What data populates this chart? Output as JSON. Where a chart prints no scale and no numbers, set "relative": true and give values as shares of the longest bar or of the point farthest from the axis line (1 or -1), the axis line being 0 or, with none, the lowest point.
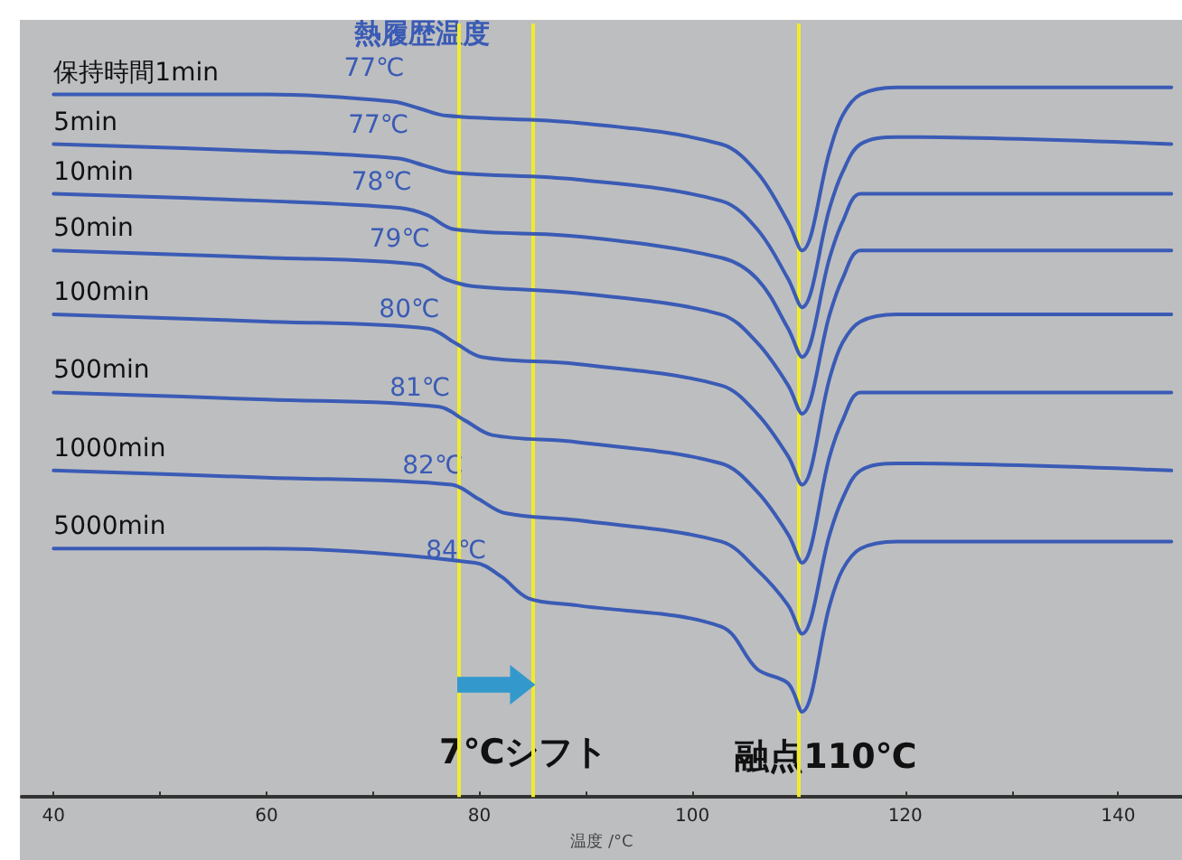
{
  "chart_data": {
    "type": "line",
    "title": null,
    "xlabel": "温度 /°C",
    "relative": true,
    "legend": false,
    "grid": false,
    "tick_labels": "x",
    "xlim": [
      37,
      146
    ],
    "xticks": [
      40,
      {
        "value": 50,
        "label": null
      },
      60,
      {
        "value": 70,
        "label": null
      },
      80,
      {
        "value": 90,
        "label": null
      },
      100,
      {
        "value": 110,
        "label": null
      },
      120,
      {
        "value": 130,
        "label": null
      },
      140
    ],
    "series": [
      {
        "name": "保持時間1min",
        "color": "#3a5bb5",
        "x": [
          40,
          60,
          71.9,
          74.4,
          76.9,
          89.2,
          102.7,
          106.1,
          109,
          110.3,
          112.9,
          114.1,
          115.8,
          119.2,
          145
        ],
        "values": [
          0.99,
          0.99,
          0.98,
          0.97,
          0.96,
          0.95,
          0.92,
          0.88,
          0.81,
          0.77,
          0.91,
          0.96,
          0.99,
          1.0,
          1.0
        ]
      },
      {
        "name": "5min",
        "color": "#3a5bb5",
        "x": [
          40,
          60,
          72.3,
          74.8,
          77.3,
          89.2,
          102.7,
          106.1,
          109,
          110.3,
          112.9,
          114.1,
          115.8,
          119.2,
          145
        ],
        "values": [
          0.92,
          0.91,
          0.9,
          0.89,
          0.88,
          0.87,
          0.84,
          0.8,
          0.73,
          0.69,
          0.83,
          0.88,
          0.92,
          0.93,
          0.92
        ]
      },
      {
        "name": "10min",
        "color": "#3a5bb5",
        "x": [
          40,
          60,
          72.6,
          75.1,
          77.6,
          89.2,
          102.7,
          106.1,
          109,
          110.3,
          112.9,
          114.1,
          115.8,
          119.2,
          145
        ],
        "values": [
          0.85,
          0.84,
          0.83,
          0.82,
          0.8,
          0.79,
          0.76,
          0.73,
          0.66,
          0.62,
          0.76,
          0.81,
          0.85,
          0.85,
          0.85
        ]
      },
      {
        "name": "50min",
        "color": "#3a5bb5",
        "x": [
          40,
          60,
          74.3,
          76.8,
          79.3,
          89.2,
          102.7,
          106.1,
          109,
          110.3,
          112.9,
          114.1,
          115.8,
          119.2,
          145
        ],
        "values": [
          0.77,
          0.76,
          0.75,
          0.73,
          0.72,
          0.71,
          0.68,
          0.64,
          0.58,
          0.54,
          0.68,
          0.73,
          0.77,
          0.77,
          0.77
        ]
      },
      {
        "name": "100min",
        "color": "#3a5bb5",
        "x": [
          40,
          60,
          75.2,
          77.7,
          80.2,
          89.2,
          102.7,
          106.1,
          109,
          110.3,
          112.9,
          114.1,
          115.8,
          119.2,
          145
        ],
        "values": [
          0.68,
          0.67,
          0.66,
          0.64,
          0.62,
          0.61,
          0.58,
          0.54,
          0.48,
          0.44,
          0.59,
          0.64,
          0.67,
          0.68,
          0.68
        ]
      },
      {
        "name": "500min",
        "color": "#3a5bb5",
        "x": [
          40,
          60,
          76.2,
          78.7,
          81.2,
          89.2,
          102.7,
          106.1,
          109,
          110.3,
          112.9,
          114.1,
          115.8,
          119.2,
          145
        ],
        "values": [
          0.57,
          0.56,
          0.55,
          0.53,
          0.51,
          0.5,
          0.47,
          0.43,
          0.37,
          0.33,
          0.48,
          0.53,
          0.57,
          0.57,
          0.57
        ]
      },
      {
        "name": "1000min",
        "color": "#3a5bb5",
        "x": [
          40,
          60,
          77.4,
          79.9,
          82.4,
          89.2,
          102.7,
          106.1,
          109,
          110.3,
          112.9,
          114.1,
          115.8,
          119.2,
          145
        ],
        "values": [
          0.46,
          0.45,
          0.44,
          0.42,
          0.4,
          0.39,
          0.36,
          0.32,
          0.27,
          0.23,
          0.37,
          0.42,
          0.46,
          0.47,
          0.46
        ]
      },
      {
        "name": "5000min",
        "color": "#3a5bb5",
        "x": [
          40,
          60,
          79.6,
          82.1,
          84.6,
          89.2,
          102.7,
          106.1,
          109,
          110.3,
          112.9,
          114.1,
          115.8,
          119.2,
          145
        ],
        "values": [
          0.35,
          0.35,
          0.33,
          0.31,
          0.28,
          0.27,
          0.24,
          0.18,
          0.16,
          0.12,
          0.27,
          0.32,
          0.35,
          0.36,
          0.36
        ]
      }
    ],
    "ref_lines": [
      {
        "axis": "x",
        "value": 78,
        "color": "#f0ec2a"
      },
      {
        "axis": "x",
        "value": 85,
        "color": "#f0ec2a"
      },
      {
        "axis": "x",
        "value": 110,
        "label": "融点110℃",
        "color": "#f0ec2a"
      }
    ],
    "annotations": [
      "熱履歴温度",
      "7℃シフト",
      {
        "text": "77℃",
        "x": 76.9,
        "y": 0.96
      },
      {
        "text": "77℃",
        "x": 77.3,
        "y": 0.88
      },
      {
        "text": "78℃",
        "x": 77.6,
        "y": 0.8
      },
      {
        "text": "79℃",
        "x": 79.3,
        "y": 0.72
      },
      {
        "text": "80℃",
        "x": 80.2,
        "y": 0.62
      },
      {
        "text": "81℃",
        "x": 81.2,
        "y": 0.51
      },
      {
        "text": "82℃",
        "x": 82.4,
        "y": 0.4
      },
      {
        "text": "84℃",
        "x": 84.6,
        "y": 0.28
      }
    ]
  }
}
